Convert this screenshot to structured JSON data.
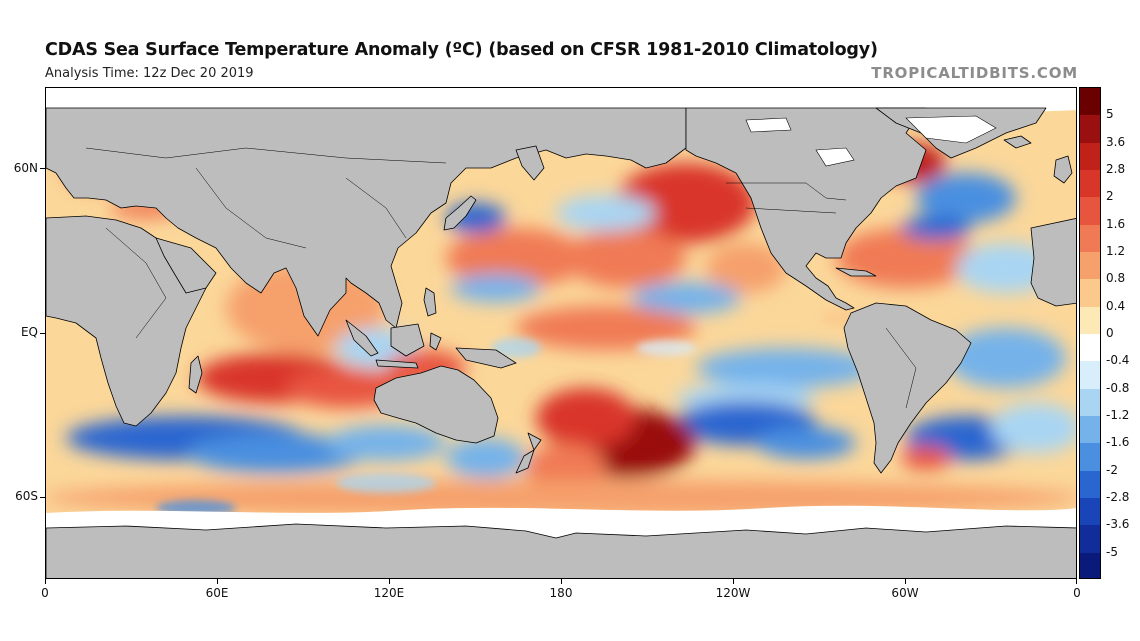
{
  "header": {
    "title": "CDAS Sea Surface Temperature Anomaly (ºC) (based on CFSR 1981-2010 Climatology)",
    "analysis_time": "Analysis Time: 12z Dec 20 2019",
    "watermark": "TROPICALTIDBITS.COM"
  },
  "map": {
    "projection": "equirectangular",
    "lat_labels": [
      "60N",
      "EQ",
      "60S"
    ],
    "lon_labels": [
      "0",
      "60E",
      "120E",
      "180",
      "120W",
      "60W",
      "0"
    ],
    "colors": {
      "land": "#bdbdbd",
      "ice": "#ffffff",
      "coastline": "#000000",
      "ocean_base": "#fbd79a"
    }
  },
  "colorbar": {
    "labels": [
      "5",
      "3.6",
      "2.8",
      "2",
      "1.6",
      "1.2",
      "0.8",
      "0.4",
      "0",
      "-0.4",
      "-0.8",
      "-1.2",
      "-1.6",
      "-2",
      "-2.8",
      "-3.6",
      "-5"
    ],
    "colors": [
      "#6b0000",
      "#9a1010",
      "#c0221a",
      "#d9362a",
      "#e8553f",
      "#f07a55",
      "#f6a06c",
      "#fbc98c",
      "#fde9b6",
      "#ffffff",
      "#d8eefb",
      "#a9d5f3",
      "#75b2ea",
      "#4a8fe0",
      "#2a66d0",
      "#1a45b8",
      "#102d9a",
      "#0a1a7a"
    ]
  }
}
